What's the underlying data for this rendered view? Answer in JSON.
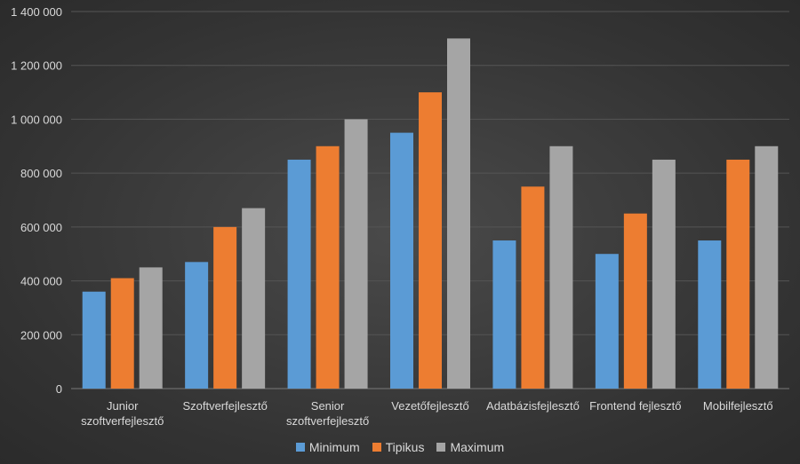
{
  "chart_data": {
    "type": "bar",
    "categories": [
      [
        "Junior",
        "szoftverfejlesztő"
      ],
      [
        "Szoftverfejlesztő"
      ],
      [
        "Senior",
        "szoftverfejlesztő"
      ],
      [
        "Vezetőfejlesztő"
      ],
      [
        "Adatbázisfejlesztő"
      ],
      [
        "Frontend fejlesztő"
      ],
      [
        "Mobilfejlesztő"
      ]
    ],
    "series": [
      {
        "name": "Minimum",
        "color": "#5b9bd5",
        "values": [
          360000,
          470000,
          850000,
          950000,
          550000,
          500000,
          550000
        ]
      },
      {
        "name": "Tipikus",
        "color": "#ed7d31",
        "values": [
          410000,
          600000,
          900000,
          1100000,
          750000,
          650000,
          850000
        ]
      },
      {
        "name": "Maximum",
        "color": "#a5a5a5",
        "values": [
          450000,
          670000,
          1000000,
          1300000,
          900000,
          850000,
          900000
        ]
      }
    ],
    "ylim": [
      0,
      1400000
    ],
    "yticks": [
      0,
      200000,
      400000,
      600000,
      800000,
      1000000,
      1200000,
      1400000
    ],
    "ytick_labels": [
      "0",
      "200 000",
      "400 000",
      "600 000",
      "800 000",
      "1 000 000",
      "1 200 000",
      "1 400 000"
    ],
    "grid": true,
    "legend_position": "bottom"
  }
}
